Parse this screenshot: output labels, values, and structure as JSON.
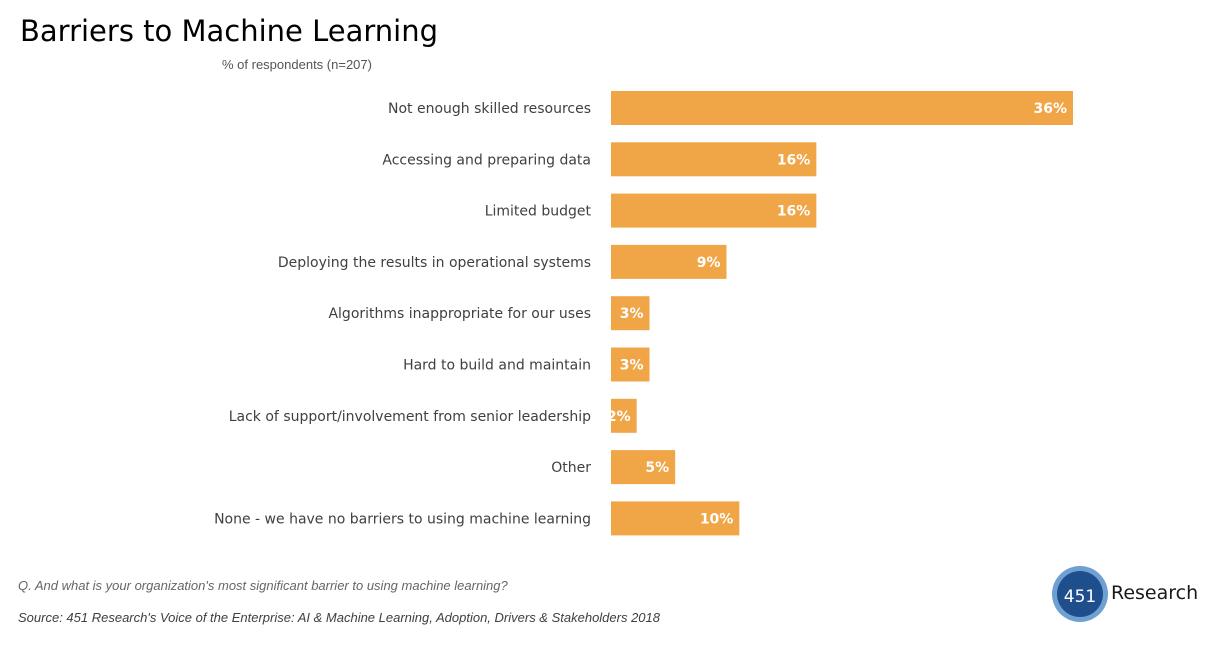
{
  "chart_data": {
    "type": "bar",
    "orientation": "horizontal",
    "title": "Barriers to Machine Learning",
    "subtitle": "% of respondents (n=207)",
    "categories": [
      "Not enough skilled resources",
      "Accessing and preparing data",
      "Limited budget",
      "Deploying the results in operational systems",
      "Algorithms inappropriate for our uses",
      "Hard to build and maintain",
      "Lack of support/involvement from senior leadership",
      "Other",
      "None - we have no barriers to using machine learning"
    ],
    "values": [
      36,
      16,
      16,
      9,
      3,
      3,
      2,
      5,
      10
    ],
    "value_labels": [
      "36%",
      "16%",
      "16%",
      "9%",
      "3%",
      "3%",
      "2%",
      "5%",
      "10%"
    ],
    "bar_color": "#f0a546",
    "grid": false
  },
  "footer": {
    "question": "Q. And what is your organization's most significant barrier to using machine learning?",
    "source": "Source: 451 Research's Voice of the Enterprise: AI & Machine Learning, Adoption, Drivers & Stakeholders 2018"
  },
  "logo": {
    "number": "451",
    "name": "Research"
  }
}
